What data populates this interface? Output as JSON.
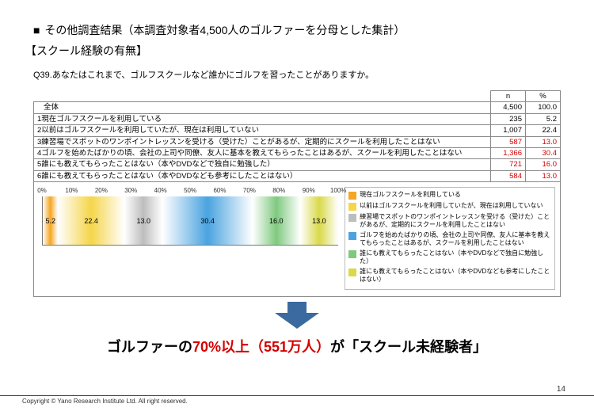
{
  "header": {
    "bullet": "■",
    "title": "その他調査結果（本調査対象者4,500人のゴルファーを分母とした集計）",
    "subtitle": "【スクール経験の有無】",
    "question": "Q39.あなたはこれまで、ゴルフスクールなど誰かにゴルフを習ったことがありますか。"
  },
  "table": {
    "columns": {
      "n": "n",
      "pct": "%"
    },
    "total": {
      "label": "全体",
      "n": "4,500",
      "pct": "100.0"
    },
    "rows": [
      {
        "idx": "1",
        "label": "現在ゴルフスクールを利用している",
        "n": "235",
        "pct": "5.2",
        "red": false
      },
      {
        "idx": "2",
        "label": "以前はゴルフスクールを利用していたが、現在は利用していない",
        "n": "1,007",
        "pct": "22.4",
        "red": false
      },
      {
        "idx": "3",
        "label": "練習場でスポットのワンポイントレッスンを受ける（受けた）ことがあるが、定期的にスクールを利用したことはない",
        "n": "587",
        "pct": "13.0",
        "red": true
      },
      {
        "idx": "4",
        "label": "ゴルフを始めたばかりの頃、会社の上司や同僚、友人に基本を教えてもらったことはあるが、スクールを利用したことはない",
        "n": "1,366",
        "pct": "30.4",
        "red": true
      },
      {
        "idx": "5",
        "label": "誰にも教えてもらったことはない（本やDVDなどで独自に勉強した）",
        "n": "721",
        "pct": "16.0",
        "red": true
      },
      {
        "idx": "6",
        "label": "誰にも教えてもらったことはない（本やDVDなども参考にしたことはない）",
        "n": "584",
        "pct": "13.0",
        "red": true
      }
    ]
  },
  "chart": {
    "type": "stacked-bar-horizontal",
    "axis_ticks": [
      "0%",
      "10%",
      "20%",
      "30%",
      "40%",
      "50%",
      "60%",
      "70%",
      "80%",
      "90%",
      "100%"
    ],
    "segments": [
      {
        "value": 5.2,
        "label": "5.2",
        "style": "grad-orange",
        "swatch": "#f5a623",
        "legend": "現在ゴルフスクールを利用している"
      },
      {
        "value": 22.4,
        "label": "22.4",
        "style": "grad-yellow",
        "swatch": "#f5d54a",
        "legend": "以前はゴルフスクールを利用していたが、現在は利用していない"
      },
      {
        "value": 13.0,
        "label": "13.0",
        "style": "grad-gray",
        "swatch": "#bdbdbd",
        "legend": "練習場でスポットのワンポイントレッスンを受ける（受けた）ことがあるが、定期的にスクールを利用したことはない"
      },
      {
        "value": 30.4,
        "label": "30.4",
        "style": "grad-blue",
        "swatch": "#4aa3e0",
        "legend": "ゴルフを始めたばかりの頃、会社の上司や同僚、友人に基本を教えてもらったことはあるが、スクールを利用したことはない"
      },
      {
        "value": 16.0,
        "label": "16.0",
        "style": "grad-teal",
        "swatch": "#7fc97f",
        "legend": "誰にも教えてもらったことはない（本やDVDなどで独自に勉強した）"
      },
      {
        "value": 13.0,
        "label": "13.0",
        "style": "grad-olive",
        "swatch": "#d9d94a",
        "legend": "誰にも教えてもらったことはない（本やDVDなども参考にしたことはない）"
      }
    ]
  },
  "arrow": {
    "fill": "#3a6aa0",
    "width": 64,
    "height": 34
  },
  "conclusion": {
    "p1": "ゴルファーの",
    "emph": "70%以上（551万人）",
    "p2": "が「スクール未経験者」"
  },
  "footer": {
    "copyright": "Copyright © Yano Research Institute Ltd. All right reserved.",
    "page": "14"
  }
}
